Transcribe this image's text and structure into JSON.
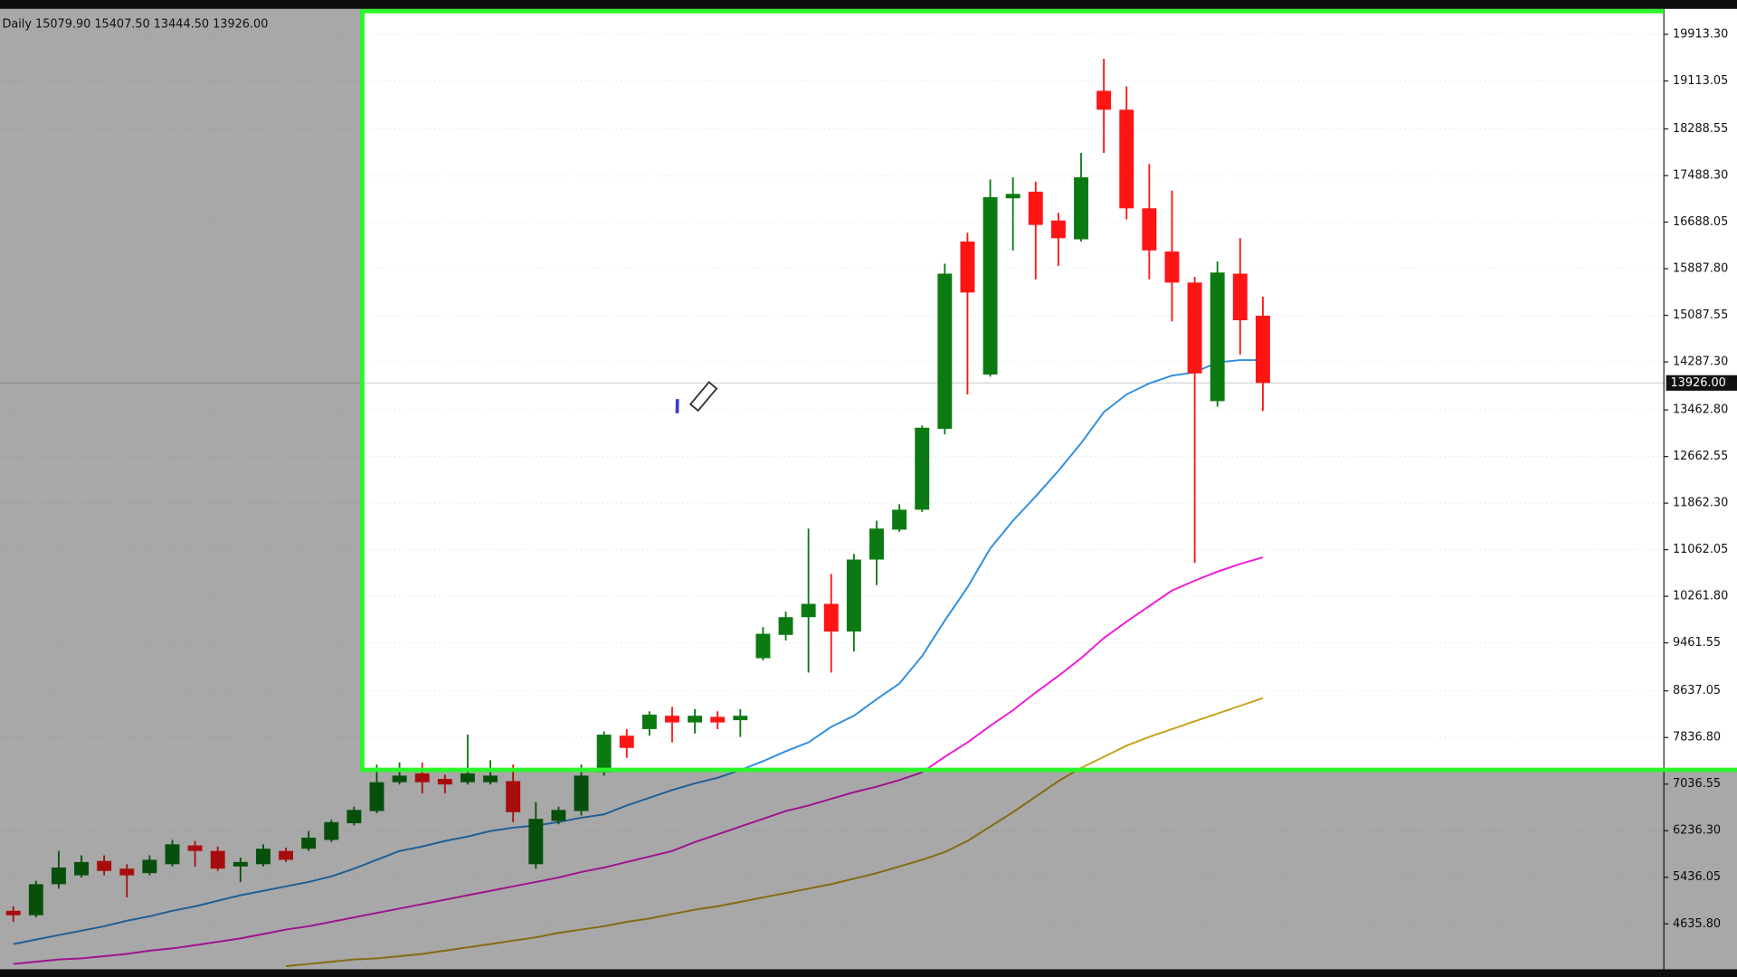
{
  "chart_data": {
    "type": "candlestick",
    "header": "Daily 15079.90 15407.50 13444.50 13926.00",
    "up_color": "#0b7a12",
    "down_color": "#ff1414",
    "open": [
      4860,
      4784,
      5317,
      5469,
      5717,
      5584,
      5507,
      5660,
      5983,
      5888,
      5622,
      5660,
      5888,
      5926,
      6078,
      6364,
      6573,
      7068,
      7220,
      7125,
      7068,
      7068,
      7087,
      5660,
      6402,
      6573,
      7239,
      7867,
      7981,
      8210,
      8095,
      8191,
      8134,
      9199,
      9599,
      9903,
      10132,
      9656,
      10893,
      11407,
      11749,
      13138,
      16354,
      14071,
      17097,
      17211,
      16716,
      16393,
      18943,
      18619,
      16925,
      16183,
      15650,
      13614,
      15803,
      15079.9
    ],
    "high": [
      4937,
      5374,
      5888,
      5812,
      5812,
      5660,
      5812,
      6078,
      6059,
      5964,
      5774,
      6002,
      5945,
      6231,
      6421,
      6649,
      7372,
      7410,
      7410,
      7201,
      7886,
      7448,
      7372,
      6725,
      6649,
      7372,
      7943,
      7981,
      8286,
      8362,
      8324,
      8286,
      8324,
      9732,
      9998,
      11425,
      10645,
      10988,
      11559,
      11844,
      13195,
      15974,
      16507,
      17420,
      17458,
      17382,
      16849,
      17877,
      19494,
      19019,
      17687,
      17230,
      15746,
      16012,
      16412,
      15407.5
    ],
    "low": [
      4670,
      4746,
      5241,
      5431,
      5469,
      5089,
      5469,
      5622,
      5622,
      5545,
      5355,
      5622,
      5698,
      5888,
      6040,
      6326,
      6535,
      7030,
      6878,
      6878,
      7030,
      7030,
      6383,
      5584,
      6345,
      6497,
      7182,
      7487,
      7867,
      7753,
      7905,
      7981,
      7848,
      9161,
      9504,
      8952,
      8952,
      9314,
      10455,
      11369,
      11711,
      13043,
      13728,
      14033,
      16202,
      15707,
      15936,
      16355,
      17877,
      16735,
      15707,
      14984,
      10836,
      13519,
      14413,
      13444.5
    ],
    "close": [
      4784,
      5317,
      5603,
      5698,
      5545,
      5469,
      5736,
      6002,
      5888,
      5584,
      5698,
      5926,
      5736,
      6116,
      6383,
      6592,
      7068,
      7182,
      7068,
      7030,
      7220,
      7182,
      6554,
      6440,
      6592,
      7182,
      7886,
      7658,
      8229,
      8095,
      8210,
      8095,
      8210,
      9618,
      9903,
      10132,
      9656,
      10893,
      11425,
      11749,
      13157,
      15803,
      15479,
      17116,
      17173,
      16640,
      16412,
      17458,
      18619,
      16925,
      16202,
      15650,
      14090,
      15822,
      15003,
      13926
    ],
    "moving_averages": [
      {
        "color": "#2f8fe0",
        "values": [
          4289,
          4366,
          4442,
          4518,
          4594,
          4689,
          4765,
          4860,
          4937,
          5032,
          5127,
          5203,
          5279,
          5355,
          5450,
          5584,
          5736,
          5888,
          5964,
          6059,
          6135,
          6231,
          6288,
          6326,
          6383,
          6459,
          6516,
          6668,
          6801,
          6935,
          7049,
          7144,
          7277,
          7429,
          7601,
          7753,
          8019,
          8210,
          8495,
          8762,
          9237,
          9846,
          10417,
          11083,
          11559,
          11978,
          12415,
          12891,
          13424,
          13728,
          13919,
          14052,
          14109,
          14280,
          14318,
          14318
        ]
      },
      {
        "color": "#f01cd8",
        "values": [
          3947,
          3985,
          4023,
          4042,
          4080,
          4118,
          4175,
          4213,
          4270,
          4328,
          4385,
          4461,
          4537,
          4594,
          4670,
          4746,
          4822,
          4898,
          4975,
          5051,
          5127,
          5203,
          5279,
          5355,
          5431,
          5526,
          5603,
          5698,
          5793,
          5888,
          6040,
          6173,
          6307,
          6440,
          6573,
          6668,
          6782,
          6897,
          6992,
          7106,
          7239,
          7506,
          7753,
          8038,
          8305,
          8609,
          8895,
          9199,
          9542,
          9827,
          10094,
          10360,
          10531,
          10684,
          10817,
          10931
        ]
      },
      {
        "color": "#c9a21a",
        "values": [
          null,
          null,
          null,
          null,
          null,
          null,
          null,
          null,
          null,
          null,
          null,
          null,
          3909,
          3947,
          3985,
          4023,
          4042,
          4080,
          4118,
          4175,
          4232,
          4289,
          4347,
          4404,
          4480,
          4537,
          4594,
          4670,
          4727,
          4803,
          4879,
          4937,
          5013,
          5089,
          5165,
          5241,
          5317,
          5412,
          5507,
          5622,
          5736,
          5869,
          6059,
          6307,
          6554,
          6820,
          7087,
          7315,
          7506,
          7696,
          7848,
          7981,
          8115,
          8248,
          8381,
          8514
        ]
      }
    ],
    "ylim": [
      3900,
      20310
    ],
    "yticks": [
      {
        "value": 19913.3,
        "label": "19913.30"
      },
      {
        "value": 19113.05,
        "label": "19113.05"
      },
      {
        "value": 18288.55,
        "label": "18288.55"
      },
      {
        "value": 17488.3,
        "label": "17488.30"
      },
      {
        "value": 16688.05,
        "label": "16688.05"
      },
      {
        "value": 15887.8,
        "label": "15887.80"
      },
      {
        "value": 15087.55,
        "label": "15087.55"
      },
      {
        "value": 14287.3,
        "label": "14287.30"
      },
      {
        "value": 13462.8,
        "label": "13462.80"
      },
      {
        "value": 12662.55,
        "label": "12662.55"
      },
      {
        "value": 11862.3,
        "label": "11862.30"
      },
      {
        "value": 11062.05,
        "label": "11062.05"
      },
      {
        "value": 10261.8,
        "label": "10261.80"
      },
      {
        "value": 9461.55,
        "label": "9461.55"
      },
      {
        "value": 8637.05,
        "label": "8637.05"
      },
      {
        "value": 7836.8,
        "label": "7836.80"
      },
      {
        "value": 7036.55,
        "label": "7036.55"
      },
      {
        "value": 6236.3,
        "label": "6236.30"
      },
      {
        "value": 5436.05,
        "label": "5436.05"
      },
      {
        "value": 4635.8,
        "label": "4635.80"
      }
    ],
    "grid": true,
    "price_label": {
      "value": 13926,
      "label": "13926.00"
    }
  }
}
